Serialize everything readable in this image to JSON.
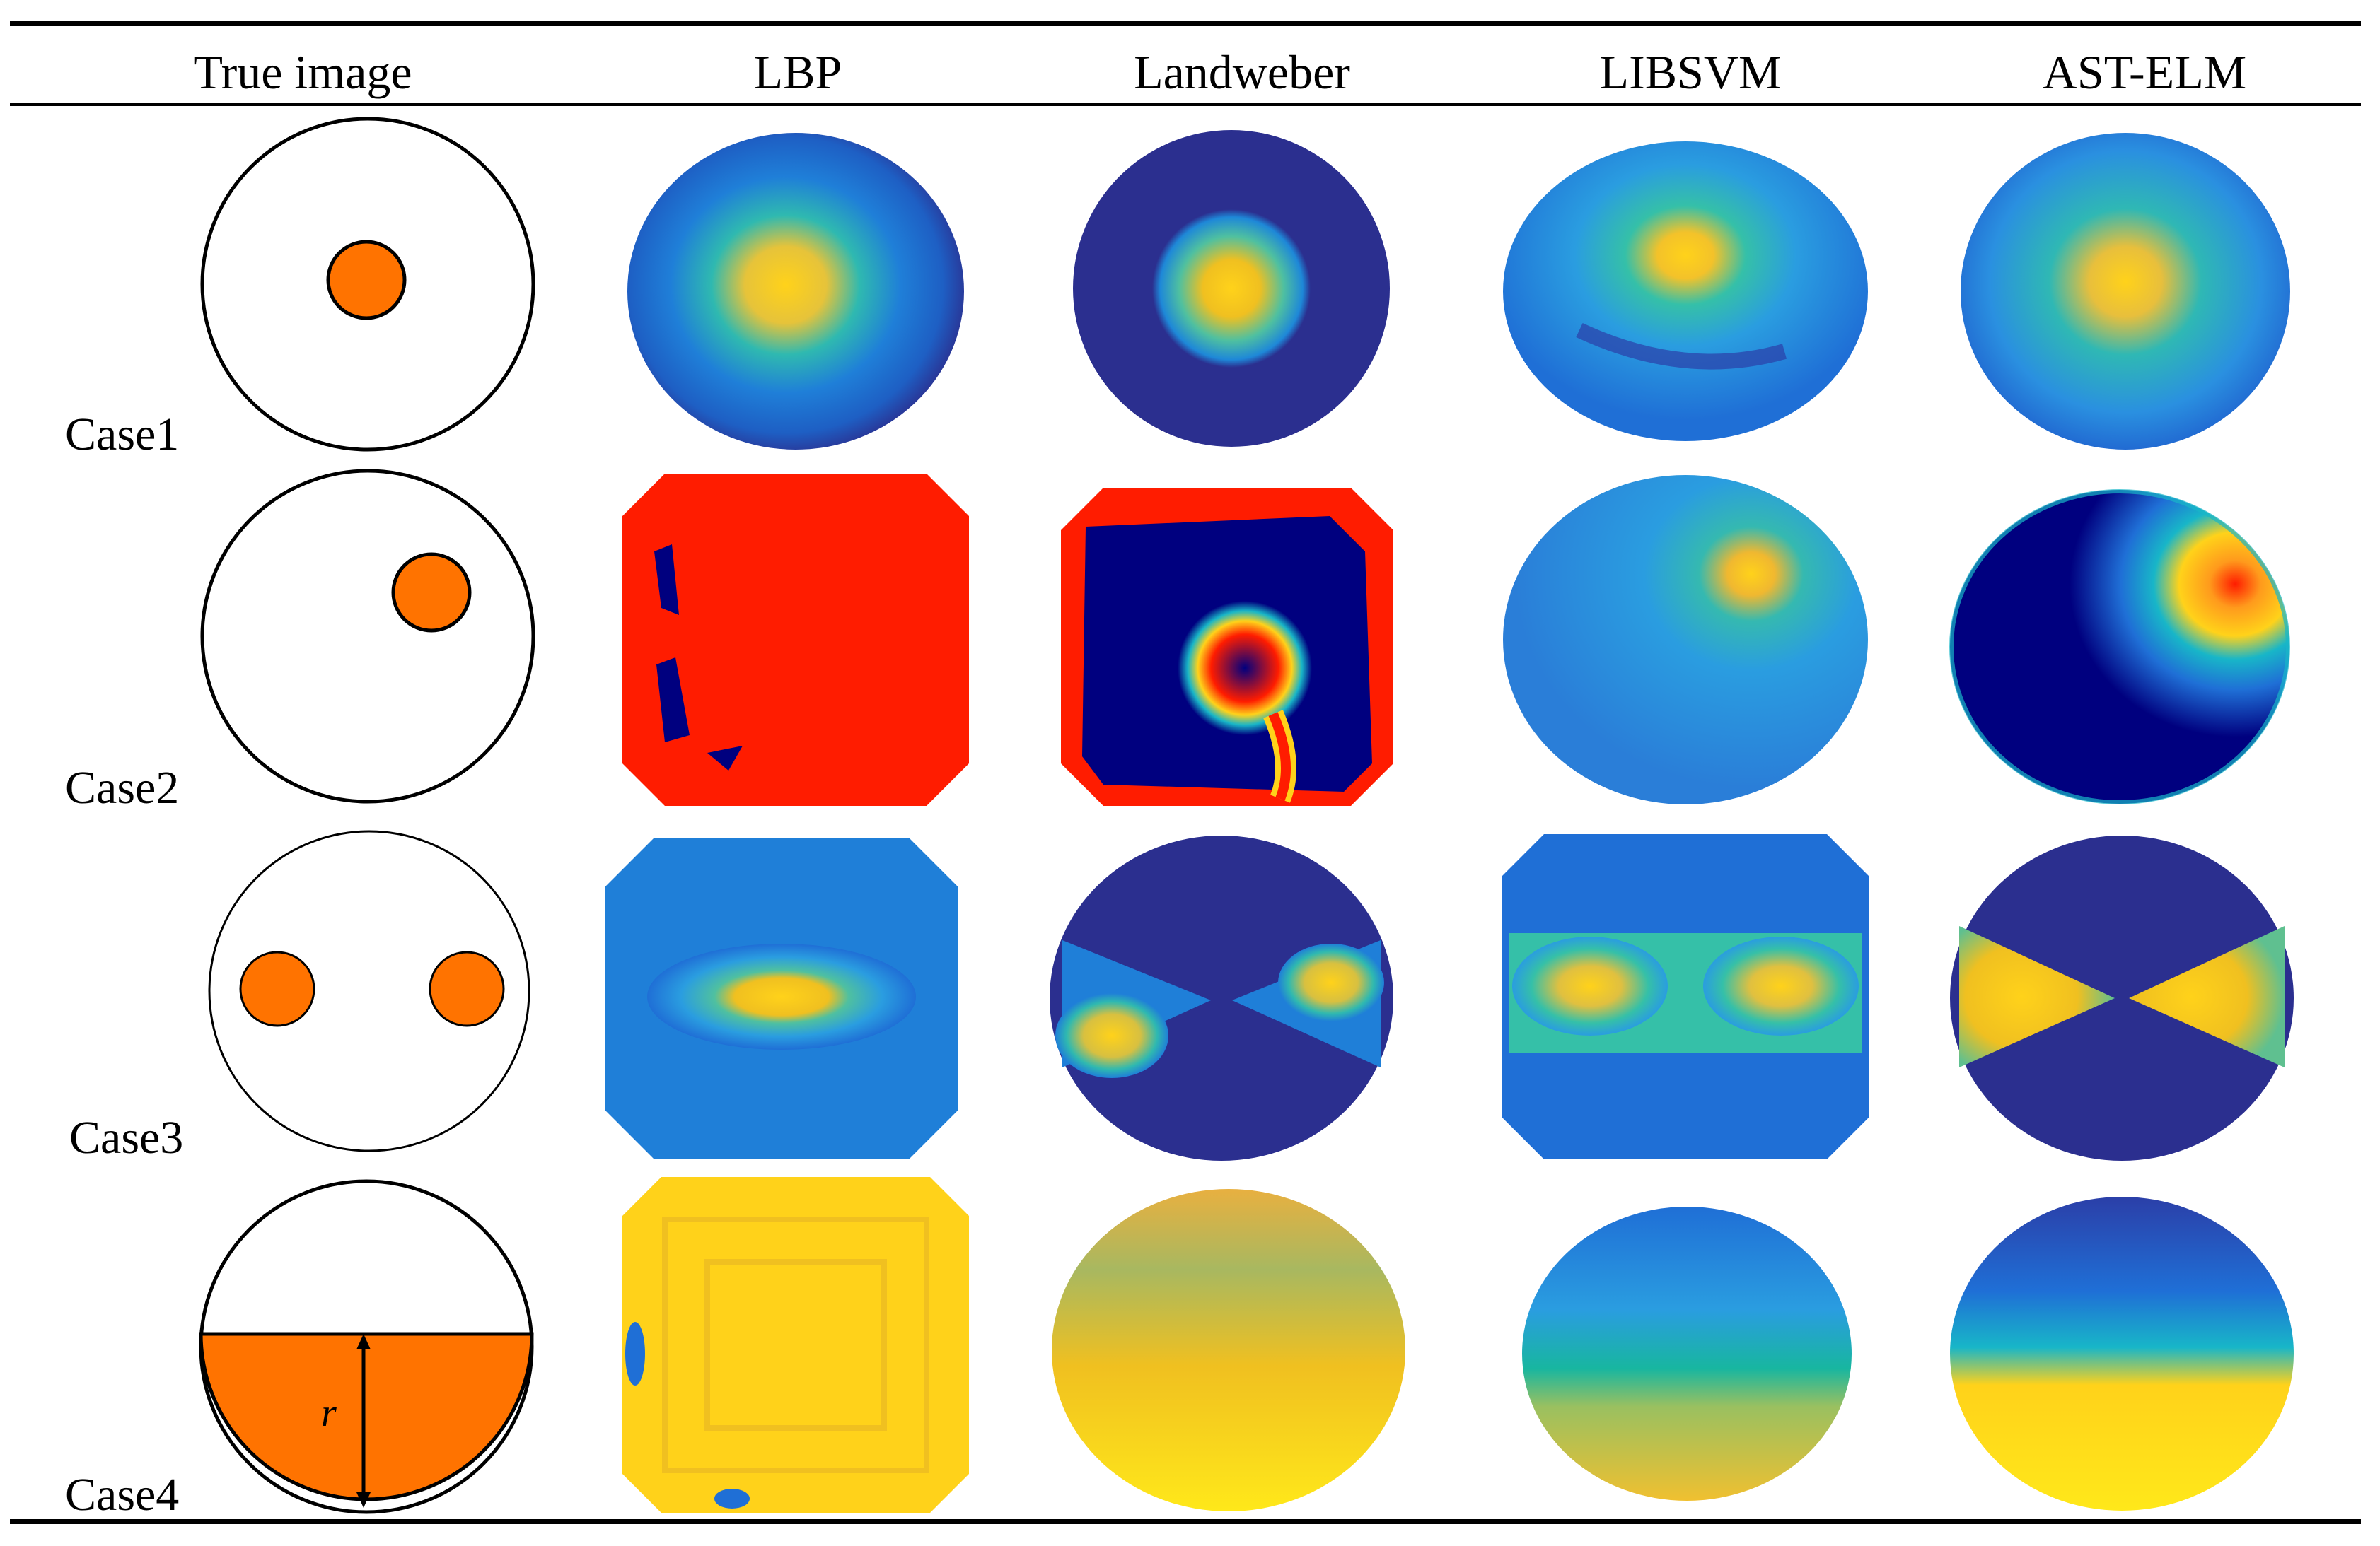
{
  "table": {
    "columns": [
      "True image",
      "LBP",
      "Landweber",
      "LIBSVM",
      "AST-ELM"
    ],
    "rows": [
      {
        "label": "Case1",
        "description": "single object centered"
      },
      {
        "label": "Case2",
        "description": "single object off-center upper right"
      },
      {
        "label": "Case3",
        "description": "two objects left and right"
      },
      {
        "label": "Case4",
        "description": "lower stratified layer"
      }
    ],
    "case4_annotation": "r"
  },
  "colors": {
    "object_fill": "#ff7300",
    "outline": "#000000",
    "jet_dark_blue": "#2b2f8f",
    "jet_navy": "#00007f",
    "jet_blue": "#1f6fd6",
    "jet_cyan": "#18b6c8",
    "jet_yellow": "#ffd21a",
    "jet_orange": "#ff9a1c",
    "jet_red": "#ff1c00"
  }
}
